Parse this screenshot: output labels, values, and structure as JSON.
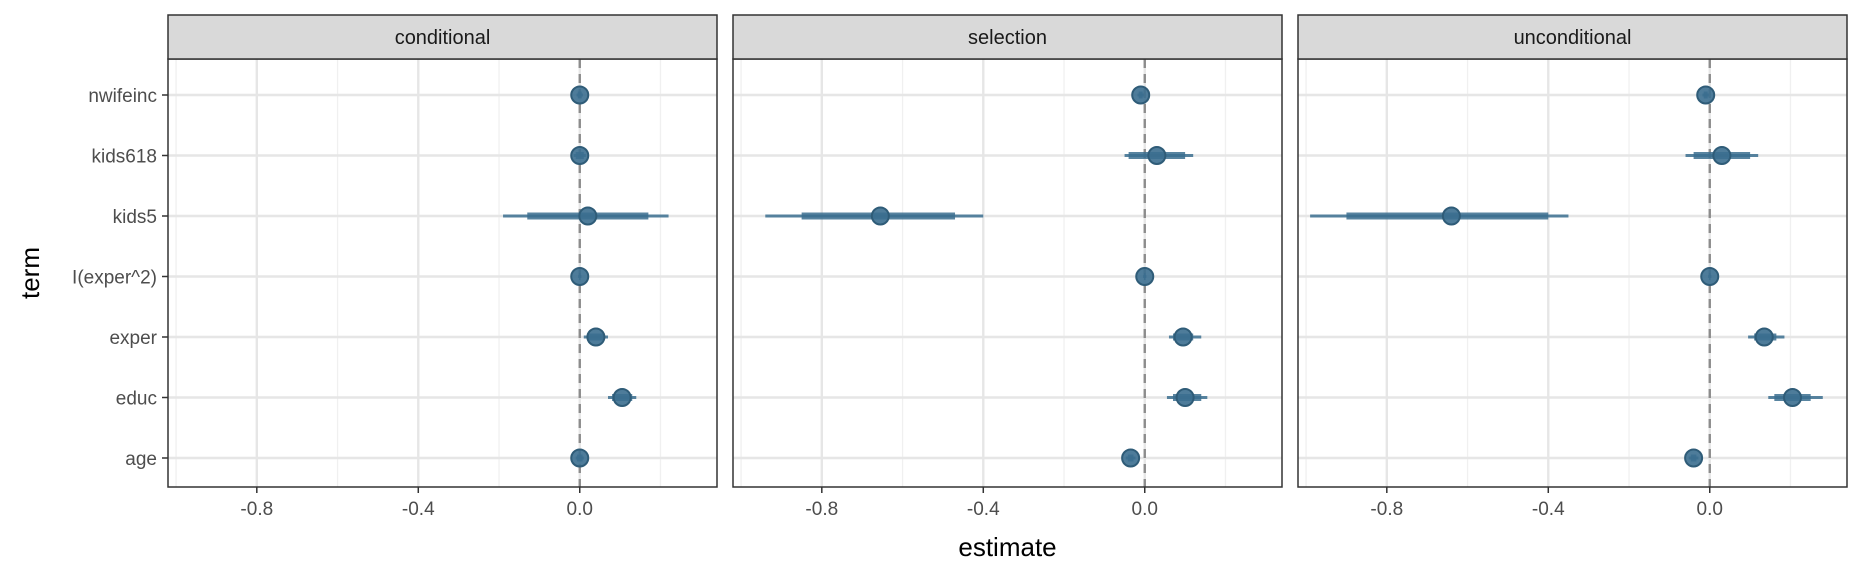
{
  "chart_data": {
    "type": "coefficient-plot",
    "xlabel": "estimate",
    "ylabel": "term",
    "xlim": [
      -1.02,
      0.34
    ],
    "x_ticks": [
      "-0.8",
      "-0.4",
      "0.0"
    ],
    "x_tick_values": [
      -0.8,
      -0.4,
      0.0
    ],
    "terms": [
      "nwifeinc",
      "kids618",
      "kids5",
      "I(exper^2)",
      "exper",
      "educ",
      "age"
    ],
    "reference_line": 0,
    "grid": true,
    "point_color": "#3b6e8f",
    "panels": [
      {
        "name": "conditional",
        "points": [
          {
            "term": "nwifeinc",
            "estimate": 0.0,
            "inner": [
              -0.005,
              0.005
            ],
            "outer": [
              -0.008,
              0.008
            ]
          },
          {
            "term": "kids618",
            "estimate": 0.0,
            "inner": [
              -0.01,
              0.01
            ],
            "outer": [
              -0.015,
              0.015
            ]
          },
          {
            "term": "kids5",
            "estimate": 0.02,
            "inner": [
              -0.13,
              0.17
            ],
            "outer": [
              -0.19,
              0.22
            ]
          },
          {
            "term": "I(exper^2)",
            "estimate": 0.0,
            "inner": [
              -0.002,
              0.002
            ],
            "outer": [
              -0.004,
              0.004
            ]
          },
          {
            "term": "exper",
            "estimate": 0.04,
            "inner": [
              0.02,
              0.06
            ],
            "outer": [
              0.01,
              0.07
            ]
          },
          {
            "term": "educ",
            "estimate": 0.105,
            "inner": [
              0.08,
              0.13
            ],
            "outer": [
              0.07,
              0.14
            ]
          },
          {
            "term": "age",
            "estimate": 0.0,
            "inner": [
              -0.007,
              0.007
            ],
            "outer": [
              -0.01,
              0.01
            ]
          }
        ]
      },
      {
        "name": "selection",
        "points": [
          {
            "term": "nwifeinc",
            "estimate": -0.01,
            "inner": [
              -0.015,
              -0.005
            ],
            "outer": [
              -0.018,
              -0.002
            ]
          },
          {
            "term": "kids618",
            "estimate": 0.03,
            "inner": [
              -0.04,
              0.1
            ],
            "outer": [
              -0.05,
              0.12
            ]
          },
          {
            "term": "kids5",
            "estimate": -0.655,
            "inner": [
              -0.85,
              -0.47
            ],
            "outer": [
              -0.94,
              -0.4
            ]
          },
          {
            "term": "I(exper^2)",
            "estimate": 0.0,
            "inner": [
              -0.002,
              0.002
            ],
            "outer": [
              -0.004,
              0.004
            ]
          },
          {
            "term": "exper",
            "estimate": 0.095,
            "inner": [
              0.07,
              0.12
            ],
            "outer": [
              0.06,
              0.14
            ]
          },
          {
            "term": "educ",
            "estimate": 0.1,
            "inner": [
              0.07,
              0.14
            ],
            "outer": [
              0.055,
              0.155
            ]
          },
          {
            "term": "age",
            "estimate": -0.035,
            "inner": [
              -0.042,
              -0.028
            ],
            "outer": [
              -0.047,
              -0.023
            ]
          }
        ]
      },
      {
        "name": "unconditional",
        "points": [
          {
            "term": "nwifeinc",
            "estimate": -0.01,
            "inner": [
              -0.015,
              -0.005
            ],
            "outer": [
              -0.018,
              -0.002
            ]
          },
          {
            "term": "kids618",
            "estimate": 0.03,
            "inner": [
              -0.04,
              0.1
            ],
            "outer": [
              -0.06,
              0.12
            ]
          },
          {
            "term": "kids5",
            "estimate": -0.64,
            "inner": [
              -0.9,
              -0.4
            ],
            "outer": [
              -0.99,
              -0.35
            ]
          },
          {
            "term": "I(exper^2)",
            "estimate": 0.0,
            "inner": [
              -0.002,
              0.002
            ],
            "outer": [
              -0.004,
              0.004
            ]
          },
          {
            "term": "exper",
            "estimate": 0.135,
            "inner": [
              0.11,
              0.165
            ],
            "outer": [
              0.095,
              0.185
            ]
          },
          {
            "term": "educ",
            "estimate": 0.205,
            "inner": [
              0.16,
              0.25
            ],
            "outer": [
              0.145,
              0.28
            ]
          },
          {
            "term": "age",
            "estimate": -0.04,
            "inner": [
              -0.047,
              -0.033
            ],
            "outer": [
              -0.052,
              -0.028
            ]
          }
        ]
      }
    ]
  }
}
